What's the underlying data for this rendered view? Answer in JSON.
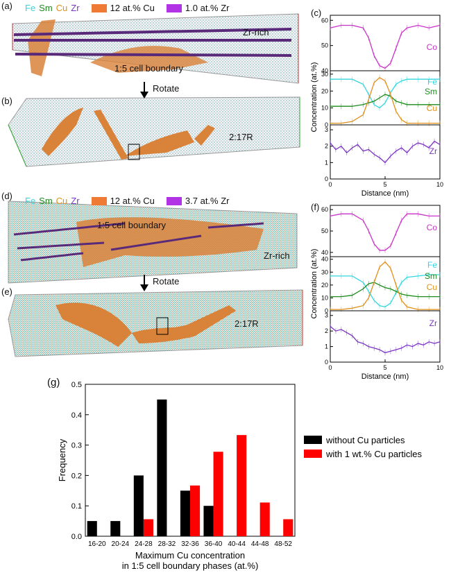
{
  "panels": {
    "a": "(a)",
    "b": "(b)",
    "c": "(c)",
    "d": "(d)",
    "e": "(e)",
    "f": "(f)",
    "g": "(g)"
  },
  "legend_top": {
    "fe": "Fe",
    "sm": "Sm",
    "cu": "Cu",
    "zr": "Zr",
    "iso_cu": "12 at.% Cu",
    "iso_zr": "1.0 at.% Zr"
  },
  "legend_mid": {
    "fe": "Fe",
    "sm": "Sm",
    "cu": "Cu",
    "zr": "Zr",
    "iso_cu": "12 at.% Cu",
    "iso_zr": "3.7 at.% Zr"
  },
  "annotations": {
    "a_zr_rich": "Zr-rich",
    "a_boundary": "1:5 cell boundary",
    "b_phase": "2:17R",
    "d_boundary": "1:5 cell boundary",
    "d_zr_rich": "Zr-rich",
    "e_phase": "2:17R",
    "rotate1": "Rotate",
    "rotate2": "Rotate"
  },
  "colors": {
    "fe": "#33d6e0",
    "sm": "#1a8a1a",
    "cu": "#e0901a",
    "zr": "#7a33c4",
    "co": "#c832c8",
    "iso_cu": "#ee7a33",
    "iso_zr": "#b233e6",
    "black_bar": "#000000",
    "red_bar": "#ff0000"
  },
  "chart_data": [
    {
      "id": "c",
      "type": "line",
      "ylabel": "Concentration (at.%)",
      "xlabel": "Distance (nm)",
      "xlim": [
        0,
        10
      ],
      "xticks": [
        0,
        5,
        10
      ],
      "subplots": [
        {
          "ylim": [
            40,
            62
          ],
          "yticks": [
            40,
            50,
            60
          ],
          "series": [
            {
              "name": "Co",
              "color": "#c832c8",
              "x": [
                0,
                1,
                2,
                3,
                3.5,
                4,
                4.5,
                5,
                5.5,
                6,
                6.5,
                7,
                8,
                9,
                10
              ],
              "y": [
                57,
                58,
                58,
                57,
                53,
                46,
                42,
                41,
                43,
                49,
                55,
                57,
                58,
                57,
                58
              ]
            }
          ]
        },
        {
          "ylim": [
            0,
            32
          ],
          "yticks": [
            0,
            10,
            20,
            30
          ],
          "series": [
            {
              "name": "Fe",
              "color": "#33d6e0",
              "x": [
                0,
                1,
                2,
                3,
                3.5,
                4,
                4.5,
                5,
                5.5,
                6,
                6.5,
                7,
                8,
                9,
                10
              ],
              "y": [
                27,
                27,
                27,
                24,
                18,
                12,
                10,
                13,
                19,
                24,
                26,
                27,
                27,
                27,
                27
              ]
            },
            {
              "name": "Sm",
              "color": "#1a8a1a",
              "x": [
                0,
                1,
                2,
                3,
                3.5,
                4,
                4.5,
                5,
                5.5,
                6,
                6.5,
                7,
                8,
                9,
                10
              ],
              "y": [
                11,
                11,
                11,
                12,
                13,
                14,
                16,
                18,
                17,
                14,
                13,
                12,
                12,
                12,
                12
              ]
            },
            {
              "name": "Cu",
              "color": "#e0901a",
              "x": [
                0,
                1,
                2,
                3,
                3.5,
                4,
                4.5,
                5,
                5.5,
                6,
                6.5,
                7,
                8,
                9,
                10
              ],
              "y": [
                1,
                1,
                2,
                6,
                15,
                25,
                28,
                26,
                18,
                8,
                3,
                1,
                1,
                1,
                1
              ]
            }
          ]
        },
        {
          "ylim": [
            0,
            3.3
          ],
          "yticks": [
            0,
            1,
            2,
            3
          ],
          "series": [
            {
              "name": "Zr",
              "color": "#7a33c4",
              "x": [
                0,
                0.5,
                1,
                1.5,
                2,
                2.5,
                3,
                3.5,
                4,
                4.5,
                5,
                5.5,
                6,
                6.5,
                7,
                7.5,
                8,
                8.5,
                9,
                9.5,
                10
              ],
              "y": [
                2.2,
                1.8,
                2.0,
                1.6,
                1.9,
                2.1,
                1.7,
                1.8,
                1.5,
                1.3,
                1.0,
                1.4,
                1.7,
                1.9,
                1.6,
                2.0,
                2.2,
                2.1,
                1.9,
                2.3,
                2.1
              ]
            }
          ]
        }
      ]
    },
    {
      "id": "f",
      "type": "line",
      "ylabel": "Concentration (at.%)",
      "xlabel": "Distance (nm)",
      "xlim": [
        0,
        10
      ],
      "xticks": [
        0,
        5,
        10
      ],
      "subplots": [
        {
          "ylim": [
            38,
            62
          ],
          "yticks": [
            40,
            50,
            60
          ],
          "series": [
            {
              "name": "Co",
              "color": "#c832c8",
              "x": [
                0,
                1,
                2,
                3,
                3.5,
                4,
                4.5,
                5,
                5.5,
                6,
                6.5,
                7,
                8,
                9,
                10
              ],
              "y": [
                57,
                58,
                58,
                55,
                50,
                44,
                41,
                41,
                43,
                49,
                55,
                58,
                58,
                57,
                57
              ]
            }
          ]
        },
        {
          "ylim": [
            0,
            42
          ],
          "yticks": [
            0,
            10,
            20,
            30,
            40
          ],
          "series": [
            {
              "name": "Fe",
              "color": "#33d6e0",
              "x": [
                0,
                1,
                2,
                3,
                3.5,
                4,
                4.5,
                5,
                5.5,
                6,
                6.5,
                7,
                8,
                9,
                10
              ],
              "y": [
                27,
                27,
                27,
                22,
                15,
                8,
                4,
                3,
                6,
                14,
                22,
                26,
                27,
                28,
                28
              ]
            },
            {
              "name": "Sm",
              "color": "#1a8a1a",
              "x": [
                0,
                1,
                2,
                3,
                3.5,
                4,
                4.5,
                5,
                5.5,
                6,
                6.5,
                7,
                8,
                9,
                10
              ],
              "y": [
                11,
                11,
                12,
                17,
                21,
                22,
                20,
                18,
                17,
                15,
                13,
                12,
                11,
                11,
                11
              ]
            },
            {
              "name": "Cu",
              "color": "#e0901a",
              "x": [
                0,
                1,
                2,
                3,
                3.5,
                4,
                4.5,
                5,
                5.5,
                6,
                6.5,
                7,
                8,
                9,
                10
              ],
              "y": [
                1,
                1,
                2,
                4,
                10,
                22,
                34,
                38,
                33,
                20,
                8,
                3,
                1,
                1,
                1
              ]
            }
          ]
        },
        {
          "ylim": [
            0,
            3.3
          ],
          "yticks": [
            0,
            1,
            2,
            3
          ],
          "series": [
            {
              "name": "Zr",
              "color": "#7a33c4",
              "x": [
                0,
                0.5,
                1,
                1.5,
                2,
                2.5,
                3,
                3.5,
                4,
                4.5,
                5,
                5.5,
                6,
                6.5,
                7,
                7.5,
                8,
                8.5,
                9,
                9.5,
                10
              ],
              "y": [
                2.3,
                2.0,
                2.1,
                1.9,
                1.7,
                1.3,
                1.2,
                1.0,
                0.9,
                0.8,
                0.6,
                0.7,
                0.8,
                0.9,
                1.1,
                1.0,
                1.2,
                1.1,
                1.3,
                1.2,
                1.3
              ]
            }
          ]
        }
      ]
    },
    {
      "id": "g",
      "type": "bar",
      "xlabel": "Maximum Cu concentration",
      "xlabel2": "in 1:5 cell boundary phases (at.%)",
      "ylabel": "Frequency",
      "ylim": [
        0,
        0.5
      ],
      "yticks": [
        0.0,
        0.1,
        0.2,
        0.3,
        0.4,
        0.5
      ],
      "categories": [
        "16-20",
        "20-24",
        "24-28",
        "28-32",
        "32-36",
        "36-40",
        "40-44",
        "44-48",
        "48-52"
      ],
      "series": [
        {
          "name": "without Cu particles",
          "color": "#000000",
          "values": [
            0.05,
            0.05,
            0.2,
            0.45,
            0.15,
            0.1,
            0,
            0,
            0
          ]
        },
        {
          "name": "with 1 wt.% Cu particles",
          "color": "#ff0000",
          "values": [
            0,
            0,
            0.056,
            0,
            0.167,
            0.278,
            0.333,
            0.111,
            0.056
          ]
        }
      ],
      "legend": "right"
    }
  ]
}
